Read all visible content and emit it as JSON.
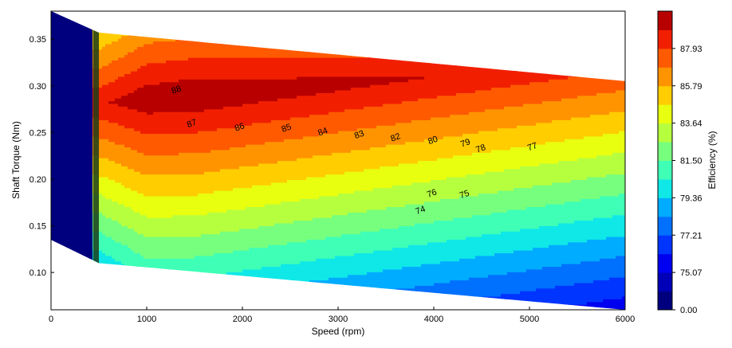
{
  "chart_data": {
    "type": "contourf",
    "title": "",
    "xlabel": "Speed  (rpm)",
    "ylabel": "Shaft Torque  (Nm)",
    "xlim": [
      0,
      6000
    ],
    "ylim": [
      0.06,
      0.38
    ],
    "x_ticks": [
      0,
      1000,
      2000,
      3000,
      4000,
      5000,
      6000
    ],
    "x_tick_labels": [
      "0",
      "1000",
      "2000",
      "3000",
      "4000",
      "5000",
      "6000"
    ],
    "y_ticks": [
      0.1,
      0.15,
      0.2,
      0.25,
      0.3,
      0.35
    ],
    "y_tick_labels": [
      "0.10",
      "0.15",
      "0.20",
      "0.25",
      "0.30",
      "0.35"
    ],
    "grid": false,
    "colormap": "jet",
    "colorbar": {
      "label": "Efficiency (%)",
      "tick_labels": [
        "0.00",
        "75.07",
        "77.21",
        "79.36",
        "81.50",
        "83.64",
        "85.79",
        "87.93"
      ],
      "levels": [
        0,
        74,
        75,
        76,
        77,
        78,
        79,
        80,
        81,
        82,
        83,
        84,
        85,
        86,
        87,
        88,
        89
      ],
      "colors": [
        "#00007f",
        "#0000b8",
        "#0000f1",
        "#0034ff",
        "#0070ff",
        "#00acff",
        "#0fe8e7",
        "#3fffb6",
        "#77ff7e",
        "#b6ff3f",
        "#e8ff0f",
        "#ffcd00",
        "#ff9400",
        "#ff5a00",
        "#f11f00",
        "#b80000"
      ]
    },
    "domain": {
      "top_boundary": [
        [
          0,
          0.38
        ],
        [
          500,
          0.357
        ],
        [
          6000,
          0.305
        ]
      ],
      "bottom_boundary": [
        [
          0,
          0.135
        ],
        [
          500,
          0.11
        ],
        [
          6000,
          0.06
        ]
      ]
    },
    "contour_labels": [
      {
        "text": "88",
        "x": 1320,
        "y": 0.293
      },
      {
        "text": "87",
        "x": 1480,
        "y": 0.257
      },
      {
        "text": "86",
        "x": 1980,
        "y": 0.253
      },
      {
        "text": "85",
        "x": 2470,
        "y": 0.252
      },
      {
        "text": "84",
        "x": 2850,
        "y": 0.248
      },
      {
        "text": "83",
        "x": 3230,
        "y": 0.245
      },
      {
        "text": "82",
        "x": 3610,
        "y": 0.242
      },
      {
        "text": "80",
        "x": 4000,
        "y": 0.239
      },
      {
        "text": "79",
        "x": 4340,
        "y": 0.236
      },
      {
        "text": "78",
        "x": 4500,
        "y": 0.23
      },
      {
        "text": "77",
        "x": 5040,
        "y": 0.232
      },
      {
        "text": "76",
        "x": 3990,
        "y": 0.182
      },
      {
        "text": "75",
        "x": 4330,
        "y": 0.181
      },
      {
        "text": "74",
        "x": 3870,
        "y": 0.164
      }
    ]
  }
}
